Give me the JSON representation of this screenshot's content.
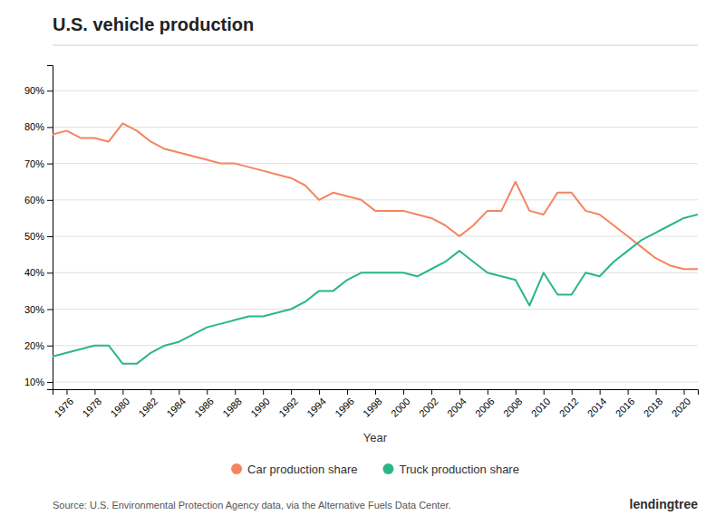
{
  "chart_data": {
    "type": "line",
    "title": "U.S. vehicle production",
    "x_label": "Year",
    "x": [
      1975,
      1976,
      1977,
      1978,
      1979,
      1980,
      1981,
      1982,
      1983,
      1984,
      1985,
      1986,
      1987,
      1988,
      1989,
      1990,
      1991,
      1992,
      1993,
      1994,
      1995,
      1996,
      1997,
      1998,
      1999,
      2000,
      2001,
      2002,
      2003,
      2004,
      2005,
      2006,
      2007,
      2008,
      2009,
      2010,
      2011,
      2012,
      2013,
      2014,
      2015,
      2016,
      2017,
      2018,
      2019,
      2020,
      2021
    ],
    "series": [
      {
        "name": "Car production share",
        "color": "#f4845f",
        "values": [
          0.78,
          0.79,
          0.77,
          0.77,
          0.76,
          0.81,
          0.79,
          0.76,
          0.74,
          0.73,
          0.72,
          0.71,
          0.7,
          0.7,
          0.69,
          0.68,
          0.67,
          0.66,
          0.64,
          0.6,
          0.62,
          0.61,
          0.6,
          0.57,
          0.57,
          0.57,
          0.56,
          0.55,
          0.53,
          0.5,
          0.53,
          0.57,
          0.57,
          0.65,
          0.57,
          0.56,
          0.62,
          0.62,
          0.57,
          0.56,
          0.53,
          0.5,
          0.47,
          0.44,
          0.42,
          0.41,
          0.41
        ]
      },
      {
        "name": "Truck production share",
        "color": "#2ab58a",
        "values": [
          0.17,
          0.18,
          0.19,
          0.2,
          0.2,
          0.15,
          0.15,
          0.18,
          0.2,
          0.21,
          0.23,
          0.25,
          0.26,
          0.27,
          0.28,
          0.28,
          0.29,
          0.3,
          0.32,
          0.35,
          0.35,
          0.38,
          0.4,
          0.4,
          0.4,
          0.4,
          0.39,
          0.41,
          0.43,
          0.46,
          0.43,
          0.4,
          0.39,
          0.38,
          0.31,
          0.4,
          0.34,
          0.34,
          0.4,
          0.39,
          0.43,
          0.46,
          0.49,
          0.51,
          0.53,
          0.55,
          0.56
        ]
      }
    ],
    "xlim": [
      1975,
      2021
    ],
    "xticks": [
      1976,
      1978,
      1980,
      1982,
      1984,
      1986,
      1988,
      1990,
      1992,
      1994,
      1996,
      1998,
      2000,
      2002,
      2004,
      2006,
      2008,
      2010,
      2012,
      2014,
      2016,
      2018,
      2020
    ],
    "ylim": [
      0.08,
      0.97
    ],
    "yticks": [
      {
        "value": 0.1,
        "label": "10%"
      },
      {
        "value": 0.2,
        "label": "20%"
      },
      {
        "value": 0.3,
        "label": "30%"
      },
      {
        "value": 0.4,
        "label": "40%"
      },
      {
        "value": 0.5,
        "label": "50%"
      },
      {
        "value": 0.6,
        "label": "60%"
      },
      {
        "value": 0.7,
        "label": "70%"
      },
      {
        "value": 0.8,
        "label": "80%"
      },
      {
        "value": 0.9,
        "label": "90%"
      }
    ],
    "grid": true,
    "legend": "bottom",
    "annotations": [
      "Source: U.S. Environmental Protection Agency data, via the Alternative Fuels Data Center.",
      "lendingtree"
    ]
  }
}
